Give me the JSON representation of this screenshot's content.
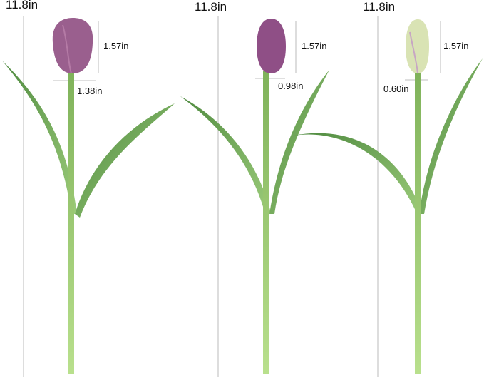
{
  "tulips": [
    {
      "total_height": "11.8in",
      "bud_height": "1.57in",
      "bud_width": "1.38in",
      "bud_color": "#9a5f8e"
    },
    {
      "total_height": "11.8in",
      "bud_height": "1.57in",
      "bud_width": "0.98in",
      "bud_color": "#8f4f86"
    },
    {
      "total_height": "11.8in",
      "bud_height": "1.57in",
      "bud_width": "0.60in",
      "bud_color": "#d9e3b4"
    }
  ],
  "colors": {
    "stem": "#a8d27a",
    "leaf": "#5e9a4e",
    "leaf_light": "#8cbf70",
    "dimension_line": "#999999"
  }
}
